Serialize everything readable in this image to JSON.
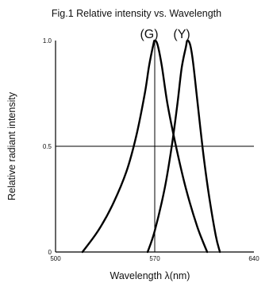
{
  "chart_data": {
    "type": "line",
    "title": "Fig.1 Relative intensity vs. Wavelength",
    "xlabel": "Wavelength λ(nm)",
    "ylabel": "Relative radiant intensity",
    "xlim": [
      500,
      640
    ],
    "ylim": [
      0,
      1.0
    ],
    "x_ticks": [
      "500",
      "570",
      "640"
    ],
    "y_ticks": [
      "0",
      "0.5",
      "1.0"
    ],
    "grid": true,
    "series": [
      {
        "name": "(G)",
        "x": [
          519,
          530,
          540,
          550,
          557,
          563,
          566,
          569,
          570,
          572,
          575,
          579,
          585,
          592,
          600,
          607
        ],
        "y": [
          0,
          0.1,
          0.22,
          0.38,
          0.55,
          0.75,
          0.88,
          0.98,
          1.0,
          0.98,
          0.88,
          0.7,
          0.5,
          0.3,
          0.12,
          0
        ]
      },
      {
        "name": "(Y)",
        "x": [
          565,
          570,
          577,
          582,
          586,
          589,
          592,
          593,
          595,
          597,
          600,
          604,
          608,
          613,
          616
        ],
        "y": [
          0,
          0.1,
          0.3,
          0.5,
          0.7,
          0.87,
          0.97,
          1.0,
          0.98,
          0.9,
          0.72,
          0.48,
          0.28,
          0.08,
          0
        ]
      }
    ]
  }
}
